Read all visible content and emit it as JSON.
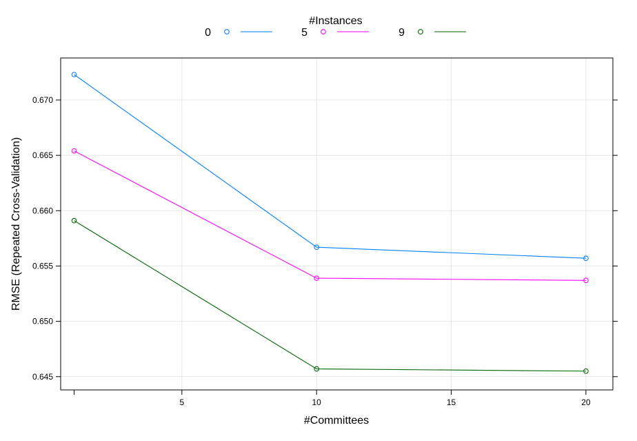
{
  "chart_data": {
    "type": "line",
    "xlabel": "#Committees",
    "ylabel": "RMSE (Repeated Cross-Validation)",
    "legend_title": "#Instances",
    "legend_position": "top",
    "grid": true,
    "x": [
      1,
      10,
      20
    ],
    "xticks": [
      5,
      10,
      15,
      20
    ],
    "yticks": [
      0.645,
      0.65,
      0.655,
      0.66,
      0.665,
      0.67
    ],
    "ytick_labels": [
      "0.645",
      "0.650",
      "0.655",
      "0.660",
      "0.665",
      "0.670"
    ],
    "xlim": [
      0.5,
      21
    ],
    "ylim": [
      0.6438,
      0.6738
    ],
    "series": [
      {
        "name": "0",
        "color": "#0080ff",
        "values": [
          0.6723,
          0.6567,
          0.6557
        ]
      },
      {
        "name": "5",
        "color": "#ff00ff",
        "values": [
          0.6654,
          0.6539,
          0.6537
        ]
      },
      {
        "name": "9",
        "color": "#006400",
        "values": [
          0.6591,
          0.6457,
          0.6455
        ]
      }
    ]
  }
}
